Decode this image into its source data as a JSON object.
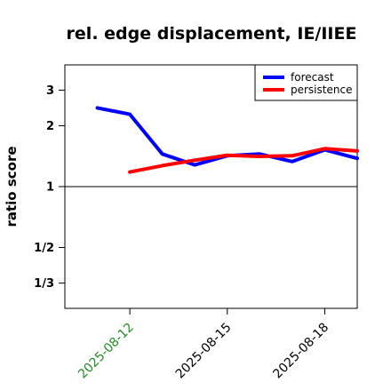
{
  "chart_data": {
    "type": "line",
    "title": "rel. edge displacement, IE/IIEE",
    "ylabel": "ratio score",
    "xlabel": "",
    "y_scale": "log",
    "ylim": [
      0.25,
      4.0
    ],
    "y_ticks": [
      {
        "value": 3,
        "label": "3"
      },
      {
        "value": 2,
        "label": "2"
      },
      {
        "value": 1,
        "label": "1"
      },
      {
        "value": 0.5,
        "label": "1/2"
      },
      {
        "value": 0.3333,
        "label": "1/3"
      }
    ],
    "x_range": [
      "2025-08-10",
      "2025-08-19"
    ],
    "x_ticks": [
      {
        "date": "2025-08-12",
        "label": "2025-08-12",
        "color": "#228b22"
      },
      {
        "date": "2025-08-15",
        "label": "2025-08-15",
        "color": "#000000"
      },
      {
        "date": "2025-08-18",
        "label": "2025-08-18",
        "color": "#000000"
      }
    ],
    "reference_line": 1,
    "legend_position": "top-right",
    "series": [
      {
        "name": "forecast",
        "color": "#0000ff",
        "x": [
          "2025-08-11",
          "2025-08-12",
          "2025-08-13",
          "2025-08-14",
          "2025-08-15",
          "2025-08-16",
          "2025-08-17",
          "2025-08-18",
          "2025-08-19"
        ],
        "y": [
          2.45,
          2.28,
          1.45,
          1.28,
          1.42,
          1.45,
          1.33,
          1.52,
          1.38
        ]
      },
      {
        "name": "persistence",
        "color": "#ff0000",
        "x": [
          "2025-08-12",
          "2025-08-13",
          "2025-08-14",
          "2025-08-15",
          "2025-08-16",
          "2025-08-17",
          "2025-08-18",
          "2025-08-19"
        ],
        "y": [
          1.18,
          1.27,
          1.35,
          1.43,
          1.41,
          1.42,
          1.54,
          1.5
        ]
      }
    ]
  }
}
